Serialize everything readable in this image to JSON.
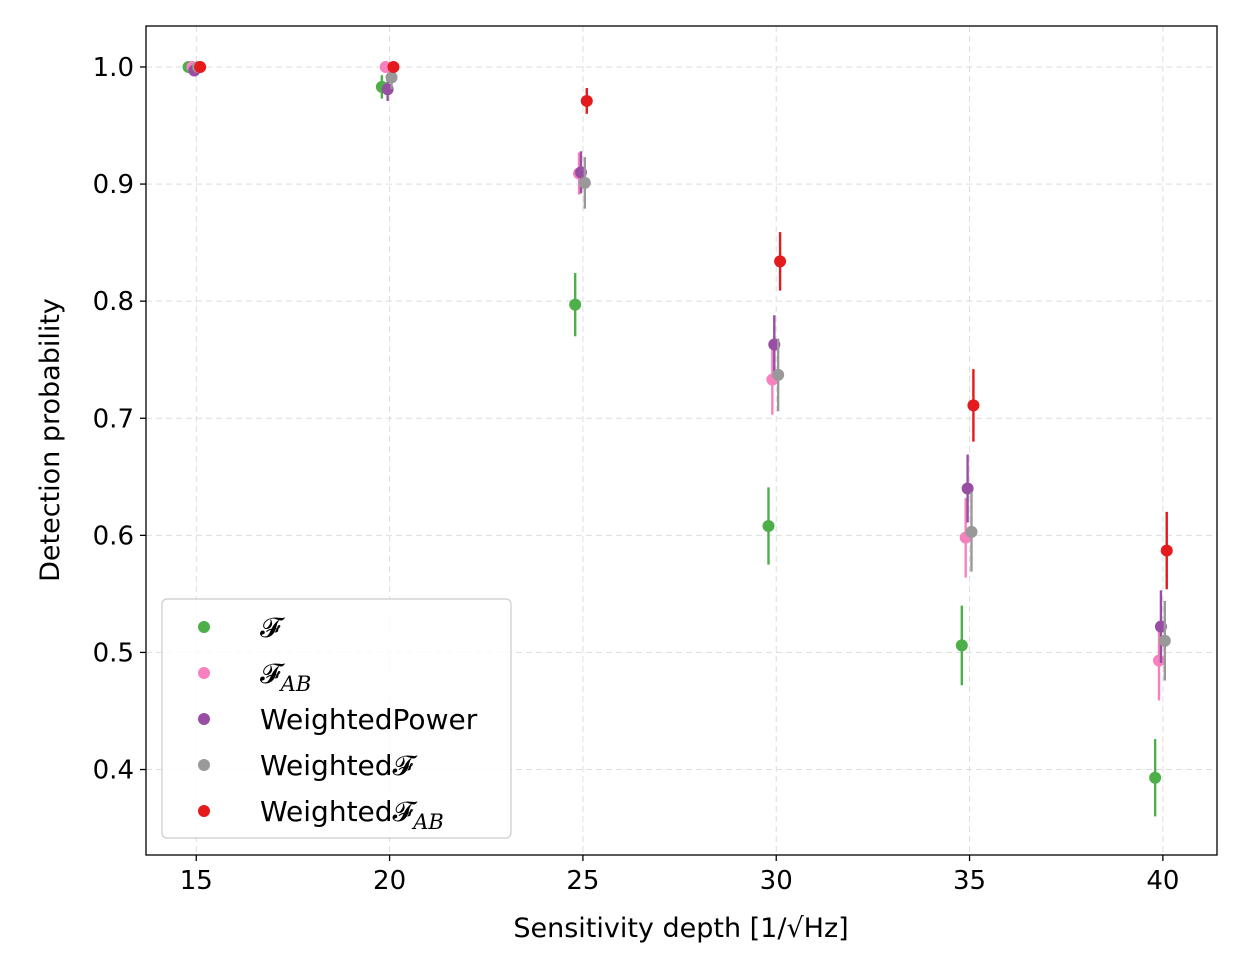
{
  "chart_data": {
    "type": "scatter",
    "xlabel": "Sensitivity depth [1/√Hz]",
    "ylabel": "Detection probability",
    "xlim": [
      13.7,
      41.4
    ],
    "ylim": [
      0.327,
      1.035
    ],
    "xticks": [
      15,
      20,
      25,
      30,
      35,
      40
    ],
    "yticks": [
      0.4,
      0.5,
      0.6,
      0.7,
      0.8,
      0.9,
      1.0
    ],
    "tick_labels_x": [
      "15",
      "20",
      "25",
      "30",
      "35",
      "40"
    ],
    "tick_labels_y": [
      "0.4",
      "0.5",
      "0.6",
      "0.7",
      "0.8",
      "0.9",
      "1.0"
    ],
    "grid": true,
    "legend_position": "lower-left",
    "x": [
      15,
      20,
      25,
      30,
      35,
      40
    ],
    "series": [
      {
        "name": "𝓕",
        "legend_parts": [
          "𝓕",
          ""
        ],
        "color": "#4daf4a",
        "offset": -0.2,
        "values": [
          1.0,
          0.983,
          0.797,
          0.608,
          0.506,
          0.393
        ],
        "errors": [
          0.0,
          0.01,
          0.027,
          0.033,
          0.034,
          0.033
        ]
      },
      {
        "name": "𝓕AB",
        "legend_parts": [
          "𝓕",
          "AB"
        ],
        "color": "#f781bf",
        "offset": -0.1,
        "values": [
          1.0,
          1.0,
          0.909,
          0.733,
          0.598,
          0.493
        ],
        "errors": [
          0.0,
          0.0,
          0.018,
          0.03,
          0.034,
          0.034
        ]
      },
      {
        "name": "WeightedPower",
        "legend_parts": [
          "WeightedPower",
          ""
        ],
        "color": "#984ea3",
        "offset": -0.05,
        "values": [
          0.997,
          0.981,
          0.91,
          0.763,
          0.64,
          0.522
        ],
        "errors": [
          0.0,
          0.01,
          0.018,
          0.025,
          0.029,
          0.031
        ]
      },
      {
        "name": "Weighted𝓕",
        "legend_parts": [
          "Weighted𝓕",
          ""
        ],
        "color": "#999999",
        "offset": 0.05,
        "values": [
          1.0,
          0.991,
          0.901,
          0.737,
          0.603,
          0.51
        ],
        "errors": [
          0.0,
          0.01,
          0.022,
          0.031,
          0.034,
          0.034
        ]
      },
      {
        "name": "Weighted𝓕AB",
        "legend_parts": [
          "Weighted𝓕",
          "AB"
        ],
        "color": "#e41a1c",
        "offset": 0.1,
        "values": [
          1.0,
          1.0,
          0.971,
          0.834,
          0.711,
          0.587
        ],
        "errors": [
          0.0,
          0.0,
          0.011,
          0.025,
          0.031,
          0.033
        ]
      }
    ]
  }
}
